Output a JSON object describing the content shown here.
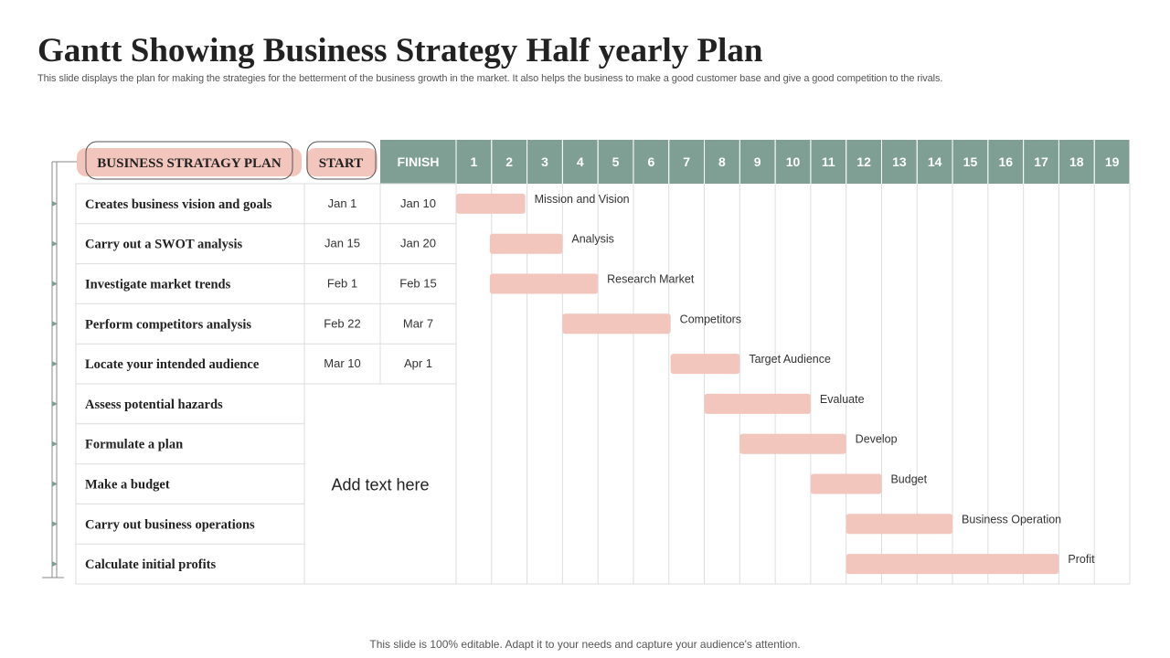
{
  "page": {
    "title": "Gantt Showing Business Strategy Half yearly Plan",
    "subtitle": "This slide displays the plan for making the strategies  for the betterment of the business growth in the market. It also helps the business to make a good customer base and give a good competition to the rivals.",
    "footer": "This slide is 100% editable. Adapt it to your needs and capture your audience's attention.",
    "placeholder_text": "Add text here"
  },
  "colors": {
    "header_bg": "#7f9f94",
    "pill": "#f2c6bd",
    "bar": "#f2c6bd",
    "grid": "#dddddd"
  },
  "chart_data": {
    "type": "gantt",
    "title": "Gantt Showing Business Strategy Half yearly Plan",
    "columns": {
      "plan": "BUSINESS STRATAGY  PLAN",
      "start": "START",
      "finish": "FINISH"
    },
    "periods": [
      "1",
      "2",
      "3",
      "4",
      "5",
      "6",
      "7",
      "8",
      "9",
      "10",
      "11",
      "12",
      "13",
      "14",
      "15",
      "16",
      "17",
      "18",
      "19"
    ],
    "tasks": [
      {
        "name": "Creates business vision and goals",
        "start": "Jan 1",
        "finish": "Jan 10",
        "bar_start": 0.0,
        "bar_end": 1.95,
        "label": "Mission and Vision"
      },
      {
        "name": "Carry out a SWOT analysis",
        "start": "Jan 15",
        "finish": "Jan 20",
        "bar_start": 0.95,
        "bar_end": 3.0,
        "label": "Analysis"
      },
      {
        "name": "Investigate market trends",
        "start": "Feb  1",
        "finish": "Feb 15",
        "bar_start": 0.95,
        "bar_end": 4.0,
        "label": "Research Market"
      },
      {
        "name": "Perform competitors analysis",
        "start": "Feb  22",
        "finish": "Mar  7",
        "bar_start": 3.0,
        "bar_end": 6.05,
        "label": "Competitors"
      },
      {
        "name": "Locate your intended audience",
        "start": "Mar  10",
        "finish": "Apr  1",
        "bar_start": 6.05,
        "bar_end": 8.0,
        "label": "Target  Audience"
      },
      {
        "name": "Assess potential hazards",
        "start": "",
        "finish": "",
        "bar_start": 7.0,
        "bar_end": 10.0,
        "label": "Evaluate"
      },
      {
        "name": "Formulate a plan",
        "start": "",
        "finish": "",
        "bar_start": 8.0,
        "bar_end": 11.0,
        "label": "Develop"
      },
      {
        "name": "Make a budget",
        "start": "",
        "finish": "",
        "bar_start": 10.0,
        "bar_end": 12.0,
        "label": "Budget"
      },
      {
        "name": "Carry out business operations",
        "start": "",
        "finish": "",
        "bar_start": 11.0,
        "bar_end": 14.0,
        "label": "Business Operation"
      },
      {
        "name": "Calculate initial profits",
        "start": "",
        "finish": "",
        "bar_start": 11.0,
        "bar_end": 17.0,
        "label": "Profit"
      }
    ]
  }
}
